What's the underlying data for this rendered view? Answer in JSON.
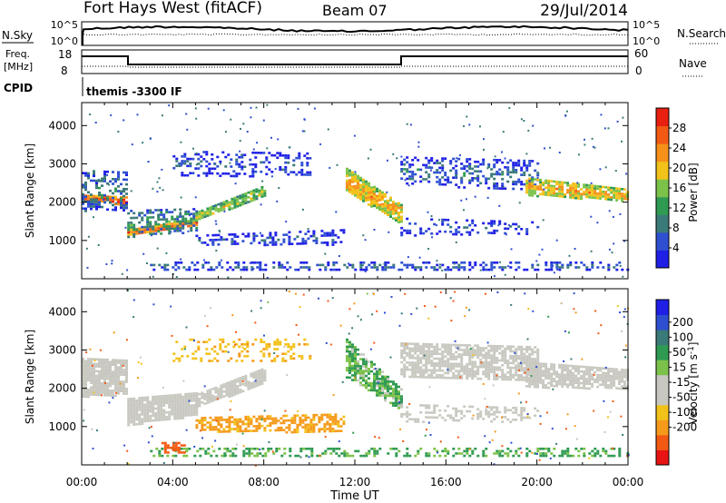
{
  "header": {
    "station": "Fort Hays West (fitACF)",
    "beam": "Beam 07",
    "date": "29/Jul/2014"
  },
  "top_panels": {
    "nsky": {
      "label": "N.Sky",
      "tick_top": "10^5",
      "tick_bottom": "10^0",
      "right_label": "N.Search",
      "right_tick_top": "10^5",
      "right_tick_bottom": "10^0"
    },
    "freq": {
      "label_line1": "Freq.",
      "label_line2": "[MHz]",
      "tick_top": "18",
      "tick_bottom": "8",
      "right_label": "Nave",
      "right_tick_top": "60",
      "right_tick_bottom": "0"
    },
    "cpid": {
      "label": "CPID",
      "value": "themis -3300 IF"
    }
  },
  "colors": {
    "frame": "#000000",
    "power_scale": [
      "#1f1fe6",
      "#2e4fd0",
      "#3a7a78",
      "#2f9a52",
      "#7cc24a",
      "#f2c21a",
      "#f5901a",
      "#f25a14",
      "#e82010"
    ],
    "velocity_scale": [
      "#e81414",
      "#f25a14",
      "#f59a1a",
      "#f2c21a",
      "#c8c8c0",
      "#c8c8c0",
      "#7cc24a",
      "#2f9a52",
      "#3a7a78",
      "#2e4fd0",
      "#1f1fe6"
    ],
    "ground_scatter": "#c8c8c0"
  },
  "chart_data": [
    {
      "type": "heatmap",
      "name": "power",
      "title": "",
      "xlabel": "Time UT",
      "ylabel": "Slant Range [km]",
      "xlim": [
        "00:00",
        "24:00"
      ],
      "ylim": [
        0,
        4600
      ],
      "x_ticks": [
        "00:00",
        "04:00",
        "08:00",
        "12:00",
        "16:00",
        "20:00",
        "00:00"
      ],
      "y_ticks": [
        1000,
        2000,
        3000,
        4000
      ],
      "colorbar": {
        "label": "Power [dB]",
        "min": 0,
        "max": 32,
        "ticks": [
          "4",
          "8",
          "12",
          "16",
          "20",
          "24",
          "28"
        ]
      },
      "bands": [
        {
          "t0": 0.0,
          "t1": 2.0,
          "r0": 2050,
          "r1": 2200,
          "r_end0": 1950,
          "r_end1": 2150,
          "dB": 28,
          "density": 0.95
        },
        {
          "t0": 0.0,
          "t1": 2.0,
          "r0": 1750,
          "r1": 2850,
          "r_end0": 1800,
          "r_end1": 2800,
          "dB": 10,
          "density": 0.4
        },
        {
          "t0": 2.0,
          "t1": 5.0,
          "r0": 1150,
          "r1": 1300,
          "r_end0": 1380,
          "r_end1": 1560,
          "dB": 27,
          "density": 0.95
        },
        {
          "t0": 2.0,
          "t1": 5.0,
          "r0": 1050,
          "r1": 1800,
          "r_end0": 1250,
          "r_end1": 1850,
          "dB": 12,
          "density": 0.45
        },
        {
          "t0": 5.0,
          "t1": 8.0,
          "r0": 1550,
          "r1": 1750,
          "r_end0": 2150,
          "r_end1": 2450,
          "dB": 18,
          "density": 0.85
        },
        {
          "t0": 4.0,
          "t1": 10.0,
          "r0": 2700,
          "r1": 3350,
          "r_end0": 2700,
          "r_end1": 3300,
          "dB": 6,
          "density": 0.3
        },
        {
          "t0": 5.0,
          "t1": 11.5,
          "r0": 900,
          "r1": 1150,
          "r_end0": 900,
          "r_end1": 1300,
          "dB": 6,
          "density": 0.4
        },
        {
          "t0": 11.6,
          "t1": 14.0,
          "r0": 2300,
          "r1": 2900,
          "r_end0": 1450,
          "r_end1": 1950,
          "dB": 22,
          "density": 0.9
        },
        {
          "t0": 14.0,
          "t1": 20.0,
          "r0": 2500,
          "r1": 3200,
          "r_end0": 2300,
          "r_end1": 3100,
          "dB": 8,
          "density": 0.35
        },
        {
          "t0": 19.5,
          "t1": 24.0,
          "r0": 2200,
          "r1": 2650,
          "r_end0": 2050,
          "r_end1": 2350,
          "dB": 22,
          "density": 0.8
        },
        {
          "t0": 14.0,
          "t1": 20.0,
          "r0": 1150,
          "r1": 1600,
          "r_end0": 1200,
          "r_end1": 1500,
          "dB": 6,
          "density": 0.25
        },
        {
          "t0": 3.0,
          "t1": 24.0,
          "r0": 250,
          "r1": 450,
          "r_end0": 250,
          "r_end1": 450,
          "dB": 8,
          "density": 0.35
        }
      ]
    },
    {
      "type": "heatmap",
      "name": "velocity",
      "title": "",
      "xlabel": "Time UT",
      "ylabel": "Slant Range [km]",
      "xlim": [
        "00:00",
        "24:00"
      ],
      "ylim": [
        0,
        4600
      ],
      "x_ticks": [
        "00:00",
        "04:00",
        "08:00",
        "12:00",
        "16:00",
        "20:00",
        "00:00"
      ],
      "y_ticks": [
        1000,
        2000,
        3000,
        4000
      ],
      "colorbar": {
        "label": "Velocity [m s^-1]",
        "min": -250,
        "max": 250,
        "ticks": [
          "200",
          "100",
          "50",
          "15",
          "-15",
          "-50",
          "-100",
          "-200"
        ]
      },
      "bands": [
        {
          "t0": 0.0,
          "t1": 2.0,
          "r0": 1800,
          "r1": 2800,
          "r_end0": 1850,
          "r_end1": 2750,
          "v": 0,
          "density": 0.9
        },
        {
          "t0": 2.0,
          "t1": 5.0,
          "r0": 1050,
          "r1": 1750,
          "r_end0": 1300,
          "r_end1": 1900,
          "v": 0,
          "density": 0.9
        },
        {
          "t0": 5.0,
          "t1": 8.0,
          "r0": 1500,
          "r1": 1850,
          "r_end0": 2150,
          "r_end1": 2550,
          "v": 0,
          "density": 0.85
        },
        {
          "t0": 4.0,
          "t1": 10.0,
          "r0": 2700,
          "r1": 3300,
          "r_end0": 2750,
          "r_end1": 3300,
          "v": -40,
          "density": 0.25
        },
        {
          "t0": 5.0,
          "t1": 11.5,
          "r0": 900,
          "r1": 1250,
          "r_end0": 850,
          "r_end1": 1350,
          "v": -60,
          "density": 0.6
        },
        {
          "t0": 11.6,
          "t1": 14.0,
          "r0": 2300,
          "r1": 3300,
          "r_end0": 1450,
          "r_end1": 2000,
          "v": 25,
          "density": 0.75
        },
        {
          "t0": 14.0,
          "t1": 20.0,
          "r0": 2300,
          "r1": 3200,
          "r_end0": 2200,
          "r_end1": 3100,
          "v": 0,
          "density": 0.75
        },
        {
          "t0": 19.5,
          "t1": 24.0,
          "r0": 2050,
          "r1": 2700,
          "r_end0": 2000,
          "r_end1": 2500,
          "v": 0,
          "density": 0.8
        },
        {
          "t0": 14.0,
          "t1": 20.0,
          "r0": 1150,
          "r1": 1600,
          "r_end0": 1150,
          "r_end1": 1500,
          "v": 0,
          "density": 0.35
        },
        {
          "t0": 3.0,
          "t1": 24.0,
          "r0": 250,
          "r1": 450,
          "r_end0": 250,
          "r_end1": 450,
          "v": 30,
          "density": 0.4
        },
        {
          "t0": 3.5,
          "t1": 4.5,
          "r0": 300,
          "r1": 600,
          "r_end0": 300,
          "r_end1": 600,
          "v": -120,
          "density": 0.5
        }
      ]
    }
  ]
}
